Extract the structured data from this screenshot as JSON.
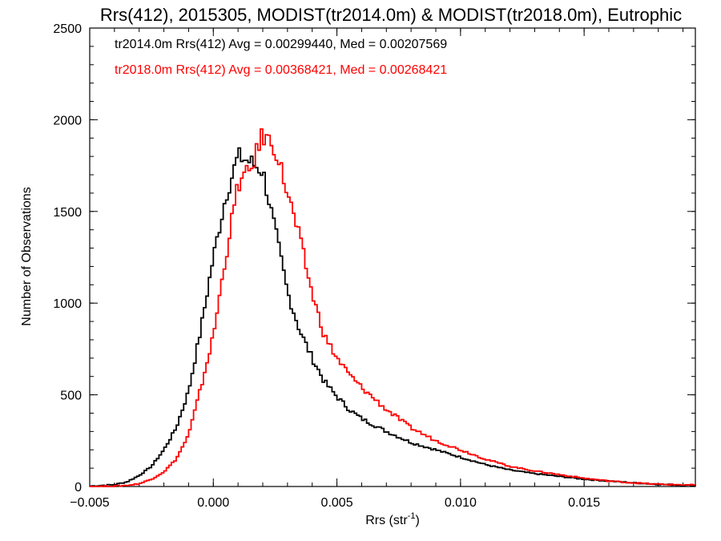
{
  "chart_data": {
    "type": "line",
    "title": "Rrs(412), 2015305, MODIST(tr2014.0m) & MODIST(tr2018.0m), Eutrophic",
    "xlabel": "Rrs (str",
    "xlabel_sup": "-1",
    "xlabel_close": ")",
    "ylabel": "Number of Observations",
    "xlim": [
      -0.005,
      0.0195
    ],
    "ylim": [
      0,
      2500
    ],
    "xticks": [
      -0.005,
      0.0,
      0.005,
      0.01,
      0.015
    ],
    "xtick_labels": [
      "−0.005",
      "0.000",
      "0.005",
      "0.010",
      "0.015"
    ],
    "yticks": [
      0,
      500,
      1000,
      1500,
      2000,
      2500
    ],
    "ytick_labels": [
      "0",
      "500",
      "1000",
      "1500",
      "2000",
      "2500"
    ],
    "legend_placement": "top-left",
    "legend": [
      "tr2014.0m Rrs(412) Avg = 0.00299440, Med = 0.00207569",
      "tr2018.0m Rrs(412) Avg = 0.00368421, Med = 0.00268421"
    ],
    "series": [
      {
        "color": "#000000",
        "x": [
          -0.005,
          -0.004,
          -0.0035,
          -0.003,
          -0.0025,
          -0.002,
          -0.0015,
          -0.001,
          -0.0005,
          0.0,
          0.0005,
          0.001,
          0.0015,
          0.002,
          0.0025,
          0.003,
          0.0035,
          0.004,
          0.0045,
          0.005,
          0.0055,
          0.006,
          0.007,
          0.008,
          0.009,
          0.01,
          0.011,
          0.012,
          0.013,
          0.014,
          0.015,
          0.016,
          0.017,
          0.018,
          0.0195
        ],
        "y": [
          2,
          10,
          25,
          60,
          110,
          200,
          320,
          520,
          860,
          1250,
          1580,
          1800,
          1770,
          1720,
          1400,
          1060,
          850,
          700,
          570,
          490,
          420,
          370,
          300,
          240,
          200,
          160,
          120,
          90,
          70,
          55,
          40,
          30,
          20,
          12,
          5
        ]
      },
      {
        "color": "#ff0000",
        "x": [
          -0.005,
          -0.004,
          -0.0035,
          -0.003,
          -0.0025,
          -0.002,
          -0.0015,
          -0.001,
          -0.0005,
          0.0,
          0.0005,
          0.001,
          0.0015,
          0.002,
          0.0025,
          0.003,
          0.0035,
          0.004,
          0.0045,
          0.005,
          0.0055,
          0.006,
          0.007,
          0.008,
          0.009,
          0.01,
          0.011,
          0.012,
          0.013,
          0.014,
          0.015,
          0.016,
          0.017,
          0.018,
          0.0195
        ],
        "y": [
          0,
          2,
          6,
          15,
          40,
          80,
          150,
          280,
          540,
          820,
          1250,
          1650,
          1720,
          1920,
          1850,
          1600,
          1350,
          1050,
          820,
          700,
          610,
          540,
          420,
          320,
          250,
          200,
          150,
          110,
          85,
          65,
          45,
          30,
          20,
          12,
          8
        ]
      }
    ]
  }
}
